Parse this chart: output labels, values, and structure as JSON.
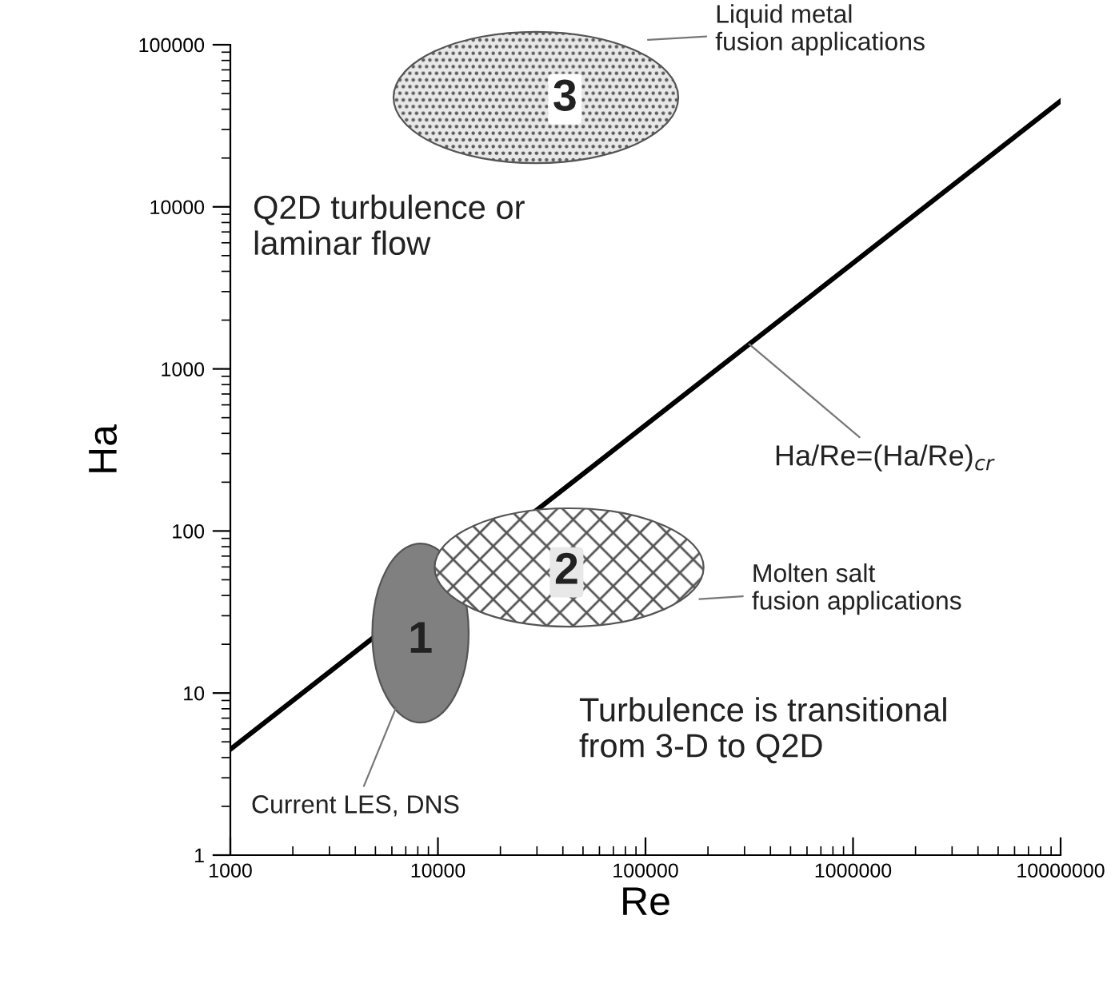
{
  "chart_data": {
    "type": "line",
    "xlabel": "Re",
    "ylabel": "Ha",
    "log": "xy",
    "xlim": [
      1000,
      10000000
    ],
    "ylim": [
      1,
      100000
    ],
    "xticks": [
      1000,
      10000,
      100000,
      1000000,
      10000000
    ],
    "yticks": [
      1,
      10,
      100,
      1000,
      10000,
      100000
    ],
    "grid": false,
    "marker": "none",
    "line_style": "solid",
    "series": [
      {
        "color": "#000000",
        "x": [
          1000,
          10000000
        ],
        "values": [
          4.5,
          45000
        ]
      }
    ],
    "annotations": [
      "3",
      "Liquid metal\nfusion applications",
      "Q2D turbulence or\nlaminar flow",
      {
        "text": "Ha/Re=(Ha/Re)$_{cr}$",
        "x": 316000,
        "y": 1420
      },
      "2",
      "1",
      "Molten salt\nfusion applications",
      "Turbulence is transitional\nfrom 3-D to Q2D",
      "Current LES, DNS"
    ]
  }
}
